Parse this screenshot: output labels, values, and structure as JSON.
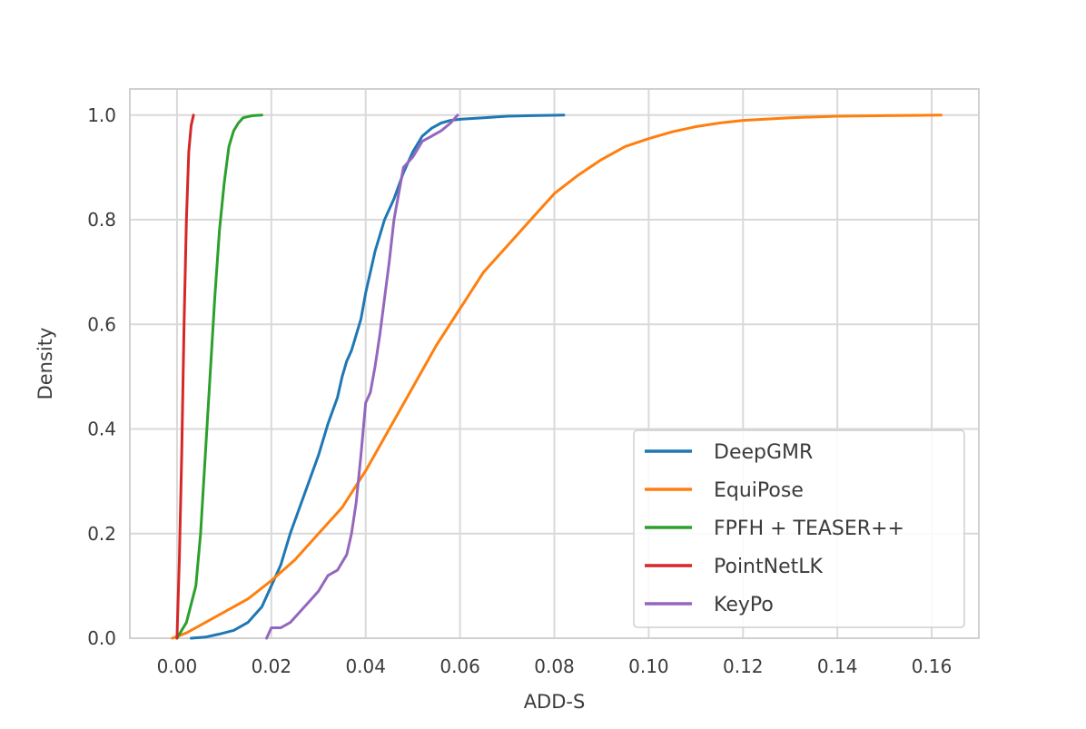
{
  "chart_data": {
    "type": "line",
    "title": "",
    "xlabel": "ADD-S",
    "ylabel": "Density",
    "xlim": [
      -0.01,
      0.17
    ],
    "ylim": [
      0.0,
      1.05
    ],
    "grid": true,
    "legend_position": "lower-right",
    "xticks": [
      "0.00",
      "0.02",
      "0.04",
      "0.06",
      "0.08",
      "0.10",
      "0.12",
      "0.14",
      "0.16"
    ],
    "xtick_values": [
      0.0,
      0.02,
      0.04,
      0.06,
      0.08,
      0.1,
      0.12,
      0.14,
      0.16
    ],
    "yticks": [
      "0.0",
      "0.2",
      "0.4",
      "0.6",
      "0.8",
      "1.0"
    ],
    "ytick_values": [
      0.0,
      0.2,
      0.4,
      0.6,
      0.8,
      1.0
    ],
    "series": [
      {
        "name": "DeepGMR",
        "color": "#1f77b4",
        "x": [
          0.003,
          0.006,
          0.009,
          0.012,
          0.015,
          0.018,
          0.02,
          0.022,
          0.024,
          0.026,
          0.028,
          0.03,
          0.032,
          0.034,
          0.035,
          0.036,
          0.037,
          0.038,
          0.039,
          0.04,
          0.041,
          0.042,
          0.043,
          0.044,
          0.046,
          0.048,
          0.05,
          0.052,
          0.054,
          0.056,
          0.058,
          0.06,
          0.065,
          0.07,
          0.075,
          0.082
        ],
        "y": [
          0.0,
          0.002,
          0.008,
          0.015,
          0.03,
          0.06,
          0.1,
          0.14,
          0.2,
          0.25,
          0.3,
          0.35,
          0.41,
          0.46,
          0.5,
          0.53,
          0.55,
          0.58,
          0.61,
          0.66,
          0.7,
          0.74,
          0.77,
          0.8,
          0.84,
          0.89,
          0.93,
          0.96,
          0.975,
          0.985,
          0.99,
          0.992,
          0.995,
          0.998,
          0.999,
          1.0
        ]
      },
      {
        "name": "EquiPose",
        "color": "#ff7f0e",
        "x": [
          -0.001,
          0.002,
          0.005,
          0.01,
          0.015,
          0.02,
          0.025,
          0.03,
          0.035,
          0.04,
          0.045,
          0.05,
          0.055,
          0.06,
          0.065,
          0.07,
          0.075,
          0.08,
          0.085,
          0.09,
          0.095,
          0.1,
          0.105,
          0.11,
          0.115,
          0.12,
          0.13,
          0.14,
          0.15,
          0.162
        ],
        "y": [
          0.0,
          0.01,
          0.025,
          0.05,
          0.075,
          0.11,
          0.15,
          0.2,
          0.25,
          0.32,
          0.4,
          0.48,
          0.56,
          0.63,
          0.7,
          0.75,
          0.8,
          0.85,
          0.885,
          0.915,
          0.94,
          0.955,
          0.968,
          0.978,
          0.985,
          0.99,
          0.995,
          0.998,
          0.999,
          1.0
        ]
      },
      {
        "name": "FPFH + TEASER++",
        "color": "#2ca02c",
        "x": [
          0.0,
          0.002,
          0.004,
          0.005,
          0.006,
          0.007,
          0.008,
          0.009,
          0.01,
          0.011,
          0.012,
          0.013,
          0.014,
          0.016,
          0.018
        ],
        "y": [
          0.0,
          0.03,
          0.1,
          0.2,
          0.35,
          0.5,
          0.65,
          0.78,
          0.87,
          0.94,
          0.97,
          0.985,
          0.995,
          0.999,
          1.0
        ]
      },
      {
        "name": "PointNetLK",
        "color": "#d62728",
        "x": [
          0.0,
          0.0005,
          0.001,
          0.0015,
          0.002,
          0.0025,
          0.003,
          0.0035
        ],
        "y": [
          0.0,
          0.15,
          0.35,
          0.6,
          0.8,
          0.93,
          0.98,
          1.0
        ]
      },
      {
        "name": "KeyPo",
        "color": "#9467bd",
        "x": [
          0.019,
          0.02,
          0.022,
          0.024,
          0.026,
          0.028,
          0.03,
          0.032,
          0.034,
          0.036,
          0.037,
          0.038,
          0.039,
          0.04,
          0.041,
          0.042,
          0.043,
          0.044,
          0.045,
          0.046,
          0.047,
          0.048,
          0.05,
          0.052,
          0.054,
          0.056,
          0.058,
          0.0595
        ],
        "y": [
          0.0,
          0.02,
          0.02,
          0.03,
          0.05,
          0.07,
          0.09,
          0.12,
          0.13,
          0.16,
          0.2,
          0.26,
          0.35,
          0.45,
          0.47,
          0.52,
          0.58,
          0.65,
          0.72,
          0.8,
          0.85,
          0.9,
          0.92,
          0.95,
          0.96,
          0.97,
          0.985,
          1.0
        ]
      }
    ]
  }
}
